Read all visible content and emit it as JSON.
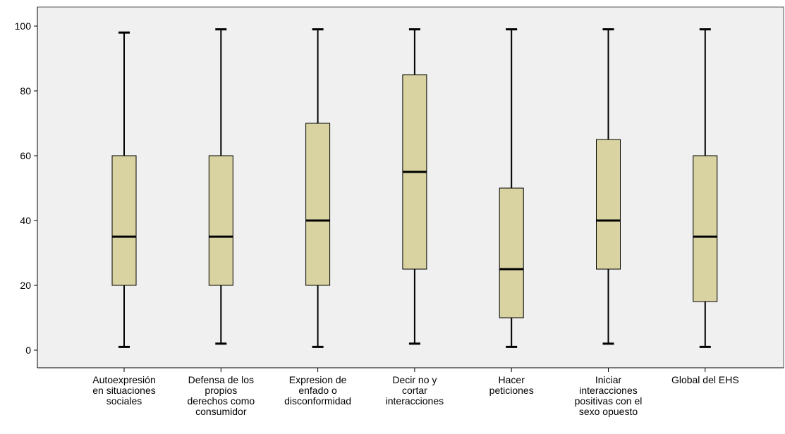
{
  "colors": {
    "plot_background": "#F0F0F0",
    "box_fill": "#D9D3A1",
    "stroke": "#000000",
    "frame": "#555555"
  },
  "chart_data": {
    "type": "boxplot",
    "ylim": [
      -5,
      105
    ],
    "yticks": [
      0,
      20,
      40,
      60,
      80,
      100
    ],
    "grid": false,
    "categories": [
      {
        "label_lines": [
          "Autoexpresión",
          "en situaciones",
          "sociales"
        ],
        "min": 1,
        "q1": 20,
        "median": 35,
        "q3": 60,
        "max": 98
      },
      {
        "label_lines": [
          "Defensa de los",
          "propios",
          "derechos como",
          "consumidor"
        ],
        "min": 2,
        "q1": 20,
        "median": 35,
        "q3": 60,
        "max": 99
      },
      {
        "label_lines": [
          "Expresion de",
          "enfado o",
          "disconformidad"
        ],
        "min": 1,
        "q1": 20,
        "median": 40,
        "q3": 70,
        "max": 99
      },
      {
        "label_lines": [
          "Decir no y",
          "cortar",
          "interacciones"
        ],
        "min": 2,
        "q1": 25,
        "median": 55,
        "q3": 85,
        "max": 99
      },
      {
        "label_lines": [
          "Hacer",
          "peticiones"
        ],
        "min": 1,
        "q1": 10,
        "median": 25,
        "q3": 50,
        "max": 99
      },
      {
        "label_lines": [
          "Iniciar",
          "interacciones",
          "positivas con el",
          "sexo opuesto"
        ],
        "min": 2,
        "q1": 25,
        "median": 40,
        "q3": 65,
        "max": 99
      },
      {
        "label_lines": [
          "Global del EHS"
        ],
        "min": 1,
        "q1": 15,
        "median": 35,
        "q3": 60,
        "max": 99
      }
    ]
  }
}
